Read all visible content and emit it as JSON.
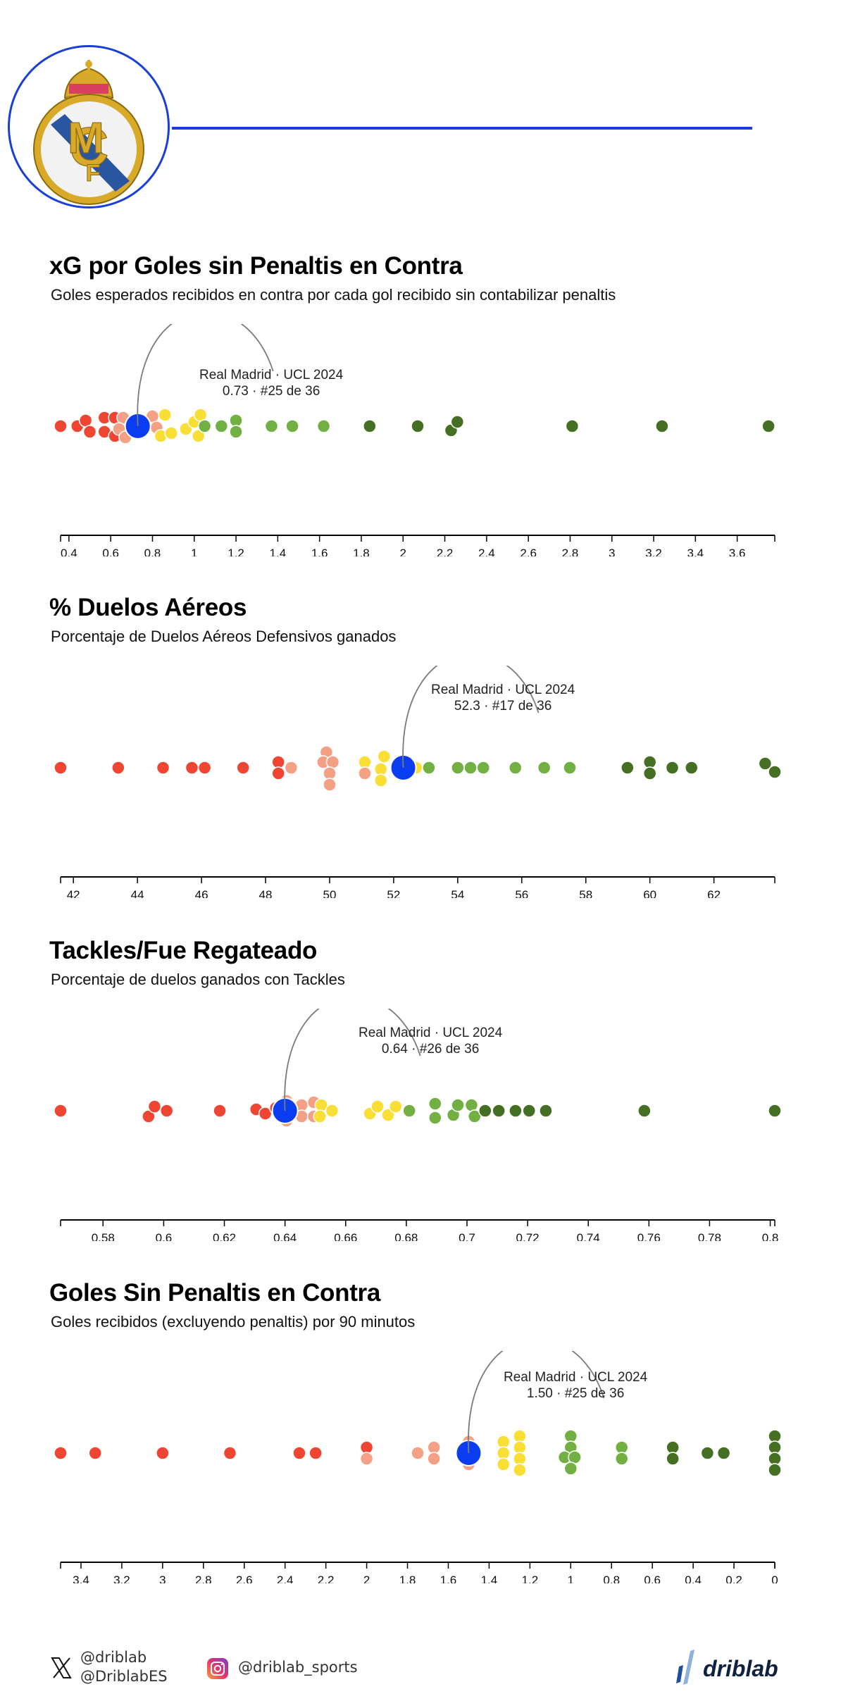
{
  "header": {
    "crest": "real-madrid-crest",
    "accent_color": "#1a3fd6"
  },
  "palette": {
    "red": "#ef4634",
    "salmon": "#f4a084",
    "yellow": "#f9de35",
    "light_green": "#72b043",
    "dark_green": "#456f22",
    "highlight": "#0a3cf0",
    "annotation_line": "#7a7a7a"
  },
  "sections": [
    {
      "title": "xG por Goles sin Penaltis en Contra",
      "subtitle": "Goles esperados recibidos en contra por cada gol recibido sin contabilizar penaltis",
      "annotation": {
        "line1": "Real Madrid · UCL 2024",
        "line2": "0.73 · #25 de 36"
      }
    },
    {
      "title": "% Duelos Aéreos",
      "subtitle": "Porcentaje de Duelos Aéreos Defensivos ganados",
      "annotation": {
        "line1": "Real Madrid · UCL 2024",
        "line2": "52.3 · #17 de 36"
      }
    },
    {
      "title": "Tackles/Fue Regateado",
      "subtitle": "Porcentaje de duelos ganados con Tackles",
      "annotation": {
        "line1": "Real Madrid · UCL 2024",
        "line2": "0.64 · #26 de 36"
      }
    },
    {
      "title": "Goles Sin Penaltis en Contra",
      "subtitle": "Goles recibidos (excluyendo penaltis) por 90 minutos",
      "annotation": {
        "line1": "Real Madrid · UCL 2024",
        "line2": "1.50 · #25 de 36"
      }
    }
  ],
  "footer": {
    "x_handles": [
      "@driblab",
      "@DriblabES"
    ],
    "instagram_handle": "@driblab_sports",
    "brand": "driblab"
  },
  "chart_data": [
    {
      "type": "scatter",
      "subtype": "beeswarm",
      "title": "xG por Goles sin Penaltis en Contra",
      "subtitle": "Goles esperados recibidos en contra por cada gol recibido sin contabilizar penaltis",
      "xlabel": "",
      "ylabel": "",
      "xlim": [
        0.36,
        3.78
      ],
      "xticks": [
        "0.4",
        "0.6",
        "0.8",
        "1",
        "1.2",
        "1.4",
        "1.6",
        "1.8",
        "2",
        "2.2",
        "2.4",
        "2.6",
        "2.8",
        "3",
        "3.2",
        "3.4",
        "3.6"
      ],
      "grid": false,
      "highlight": {
        "team": "Real Madrid",
        "competition": "UCL 2024",
        "value": 0.73,
        "rank": 25,
        "total": 36
      },
      "points": [
        {
          "x": 0.36,
          "dy": 0,
          "c": "red"
        },
        {
          "x": 0.44,
          "dy": 0,
          "c": "red"
        },
        {
          "x": 0.48,
          "dy": -8,
          "c": "red"
        },
        {
          "x": 0.5,
          "dy": 8,
          "c": "red"
        },
        {
          "x": 0.57,
          "dy": -12,
          "c": "red"
        },
        {
          "x": 0.57,
          "dy": 8,
          "c": "red"
        },
        {
          "x": 0.62,
          "dy": -12,
          "c": "red"
        },
        {
          "x": 0.62,
          "dy": 14,
          "c": "red"
        },
        {
          "x": 0.66,
          "dy": -12,
          "c": "salmon"
        },
        {
          "x": 0.64,
          "dy": 4,
          "c": "salmon"
        },
        {
          "x": 0.67,
          "dy": 16,
          "c": "salmon"
        },
        {
          "x": 0.8,
          "dy": -14,
          "c": "salmon"
        },
        {
          "x": 0.82,
          "dy": 2,
          "c": "salmon"
        },
        {
          "x": 0.86,
          "dy": -16,
          "c": "yellow"
        },
        {
          "x": 0.84,
          "dy": 14,
          "c": "yellow"
        },
        {
          "x": 0.89,
          "dy": 10,
          "c": "yellow"
        },
        {
          "x": 0.96,
          "dy": 4,
          "c": "yellow"
        },
        {
          "x": 1.0,
          "dy": -6,
          "c": "yellow"
        },
        {
          "x": 1.03,
          "dy": -16,
          "c": "yellow"
        },
        {
          "x": 1.02,
          "dy": 14,
          "c": "yellow"
        },
        {
          "x": 1.05,
          "dy": 0,
          "c": "light_green"
        },
        {
          "x": 1.13,
          "dy": 0,
          "c": "light_green"
        },
        {
          "x": 1.2,
          "dy": -8,
          "c": "light_green"
        },
        {
          "x": 1.2,
          "dy": 8,
          "c": "light_green"
        },
        {
          "x": 1.37,
          "dy": 0,
          "c": "light_green"
        },
        {
          "x": 1.47,
          "dy": 0,
          "c": "light_green"
        },
        {
          "x": 1.62,
          "dy": 0,
          "c": "light_green"
        },
        {
          "x": 1.84,
          "dy": 0,
          "c": "dark_green"
        },
        {
          "x": 2.07,
          "dy": 0,
          "c": "dark_green"
        },
        {
          "x": 2.23,
          "dy": 6,
          "c": "dark_green"
        },
        {
          "x": 2.26,
          "dy": -6,
          "c": "dark_green"
        },
        {
          "x": 2.81,
          "dy": 0,
          "c": "dark_green"
        },
        {
          "x": 3.24,
          "dy": 0,
          "c": "dark_green"
        },
        {
          "x": 3.75,
          "dy": 0,
          "c": "dark_green"
        }
      ]
    },
    {
      "type": "scatter",
      "subtype": "beeswarm",
      "title": "% Duelos Aéreos",
      "subtitle": "Porcentaje de Duelos Aéreos Defensivos ganados",
      "xlabel": "",
      "ylabel": "",
      "xlim": [
        41.6,
        63.9
      ],
      "xticks": [
        "42",
        "44",
        "46",
        "48",
        "50",
        "52",
        "54",
        "56",
        "58",
        "60",
        "62"
      ],
      "grid": false,
      "highlight": {
        "team": "Real Madrid",
        "competition": "UCL 2024",
        "value": 52.3,
        "rank": 17,
        "total": 36
      },
      "points": [
        {
          "x": 41.6,
          "dy": 0,
          "c": "red"
        },
        {
          "x": 43.4,
          "dy": 0,
          "c": "red"
        },
        {
          "x": 44.8,
          "dy": 0,
          "c": "red"
        },
        {
          "x": 45.7,
          "dy": 0,
          "c": "red"
        },
        {
          "x": 46.1,
          "dy": 0,
          "c": "red"
        },
        {
          "x": 47.3,
          "dy": 0,
          "c": "red"
        },
        {
          "x": 48.4,
          "dy": -8,
          "c": "red"
        },
        {
          "x": 48.4,
          "dy": 8,
          "c": "red"
        },
        {
          "x": 48.8,
          "dy": 0,
          "c": "salmon"
        },
        {
          "x": 49.9,
          "dy": -22,
          "c": "salmon"
        },
        {
          "x": 49.8,
          "dy": -8,
          "c": "salmon"
        },
        {
          "x": 50.1,
          "dy": -8,
          "c": "salmon"
        },
        {
          "x": 50.0,
          "dy": 8,
          "c": "salmon"
        },
        {
          "x": 50.0,
          "dy": 24,
          "c": "salmon"
        },
        {
          "x": 51.1,
          "dy": -8,
          "c": "yellow"
        },
        {
          "x": 51.1,
          "dy": 8,
          "c": "salmon"
        },
        {
          "x": 51.7,
          "dy": -16,
          "c": "yellow"
        },
        {
          "x": 51.6,
          "dy": 2,
          "c": "yellow"
        },
        {
          "x": 51.6,
          "dy": 18,
          "c": "yellow"
        },
        {
          "x": 52.7,
          "dy": 0,
          "c": "yellow"
        },
        {
          "x": 53.1,
          "dy": 0,
          "c": "light_green"
        },
        {
          "x": 54.0,
          "dy": 0,
          "c": "light_green"
        },
        {
          "x": 54.4,
          "dy": 0,
          "c": "light_green"
        },
        {
          "x": 54.8,
          "dy": 0,
          "c": "light_green"
        },
        {
          "x": 55.8,
          "dy": 0,
          "c": "light_green"
        },
        {
          "x": 56.7,
          "dy": 0,
          "c": "light_green"
        },
        {
          "x": 57.5,
          "dy": 0,
          "c": "light_green"
        },
        {
          "x": 59.3,
          "dy": 0,
          "c": "dark_green"
        },
        {
          "x": 60.0,
          "dy": -8,
          "c": "dark_green"
        },
        {
          "x": 60.0,
          "dy": 8,
          "c": "dark_green"
        },
        {
          "x": 60.7,
          "dy": 0,
          "c": "dark_green"
        },
        {
          "x": 61.3,
          "dy": 0,
          "c": "dark_green"
        },
        {
          "x": 63.6,
          "dy": -6,
          "c": "dark_green"
        },
        {
          "x": 63.9,
          "dy": 6,
          "c": "dark_green"
        }
      ]
    },
    {
      "type": "scatter",
      "subtype": "beeswarm",
      "title": "Tackles/Fue Regateado",
      "subtitle": "Porcentaje de duelos ganados con Tackles",
      "xlabel": "",
      "ylabel": "",
      "xlim": [
        0.566,
        0.8015
      ],
      "xticks": [
        "0.58",
        "0.6",
        "0.62",
        "0.64",
        "0.66",
        "0.68",
        "0.7",
        "0.72",
        "0.74",
        "0.76",
        "0.78",
        "0.8"
      ],
      "grid": false,
      "highlight": {
        "team": "Real Madrid",
        "competition": "UCL 2024",
        "value": 0.64,
        "rank": 26,
        "total": 36
      },
      "points": [
        {
          "x": 0.566,
          "dy": 0,
          "c": "red"
        },
        {
          "x": 0.595,
          "dy": 8,
          "c": "red"
        },
        {
          "x": 0.597,
          "dy": -6,
          "c": "red"
        },
        {
          "x": 0.601,
          "dy": 0,
          "c": "red"
        },
        {
          "x": 0.6185,
          "dy": 0,
          "c": "red"
        },
        {
          "x": 0.6305,
          "dy": -2,
          "c": "red"
        },
        {
          "x": 0.6335,
          "dy": 4,
          "c": "red"
        },
        {
          "x": 0.637,
          "dy": -4,
          "c": "red"
        },
        {
          "x": 0.6405,
          "dy": -14,
          "c": "salmon"
        },
        {
          "x": 0.6405,
          "dy": 14,
          "c": "salmon"
        },
        {
          "x": 0.6455,
          "dy": -8,
          "c": "salmon"
        },
        {
          "x": 0.6455,
          "dy": 8,
          "c": "salmon"
        },
        {
          "x": 0.6495,
          "dy": -12,
          "c": "salmon"
        },
        {
          "x": 0.6495,
          "dy": 8,
          "c": "salmon"
        },
        {
          "x": 0.652,
          "dy": -8,
          "c": "yellow"
        },
        {
          "x": 0.6515,
          "dy": 8,
          "c": "yellow"
        },
        {
          "x": 0.6555,
          "dy": 0,
          "c": "yellow"
        },
        {
          "x": 0.668,
          "dy": 4,
          "c": "yellow"
        },
        {
          "x": 0.6705,
          "dy": -6,
          "c": "yellow"
        },
        {
          "x": 0.674,
          "dy": 6,
          "c": "yellow"
        },
        {
          "x": 0.6765,
          "dy": -6,
          "c": "yellow"
        },
        {
          "x": 0.681,
          "dy": 0,
          "c": "light_green"
        },
        {
          "x": 0.6895,
          "dy": -10,
          "c": "light_green"
        },
        {
          "x": 0.6895,
          "dy": 10,
          "c": "light_green"
        },
        {
          "x": 0.6955,
          "dy": 6,
          "c": "light_green"
        },
        {
          "x": 0.697,
          "dy": -8,
          "c": "light_green"
        },
        {
          "x": 0.7015,
          "dy": -8,
          "c": "light_green"
        },
        {
          "x": 0.7025,
          "dy": 8,
          "c": "light_green"
        },
        {
          "x": 0.706,
          "dy": 0,
          "c": "dark_green"
        },
        {
          "x": 0.7105,
          "dy": 0,
          "c": "dark_green"
        },
        {
          "x": 0.716,
          "dy": 0,
          "c": "dark_green"
        },
        {
          "x": 0.7205,
          "dy": 0,
          "c": "dark_green"
        },
        {
          "x": 0.726,
          "dy": 0,
          "c": "dark_green"
        },
        {
          "x": 0.7585,
          "dy": 0,
          "c": "dark_green"
        },
        {
          "x": 0.8015,
          "dy": 0,
          "c": "dark_green"
        }
      ]
    },
    {
      "type": "scatter",
      "subtype": "beeswarm",
      "title": "Goles Sin Penaltis en Contra",
      "subtitle": "Goles recibidos (excluyendo penaltis) por 90 minutos",
      "xlabel": "",
      "ylabel": "",
      "xlim": [
        3.5,
        0
      ],
      "x_reversed": true,
      "xticks": [
        "3.4",
        "3.2",
        "3",
        "2.8",
        "2.6",
        "2.4",
        "2.2",
        "2",
        "1.8",
        "1.6",
        "1.4",
        "1.2",
        "1",
        "0.8",
        "0.6",
        "0.4",
        "0.2",
        "0"
      ],
      "grid": false,
      "highlight": {
        "team": "Real Madrid",
        "competition": "UCL 2024",
        "value": 1.5,
        "rank": 25,
        "total": 36
      },
      "points": [
        {
          "x": 3.5,
          "dy": 0,
          "c": "red"
        },
        {
          "x": 3.33,
          "dy": 0,
          "c": "red"
        },
        {
          "x": 3.0,
          "dy": 0,
          "c": "red"
        },
        {
          "x": 2.67,
          "dy": 0,
          "c": "red"
        },
        {
          "x": 2.33,
          "dy": 0,
          "c": "red"
        },
        {
          "x": 2.25,
          "dy": 0,
          "c": "red"
        },
        {
          "x": 2.0,
          "dy": -8,
          "c": "red"
        },
        {
          "x": 2.0,
          "dy": 8,
          "c": "salmon"
        },
        {
          "x": 1.75,
          "dy": 0,
          "c": "salmon"
        },
        {
          "x": 1.67,
          "dy": -8,
          "c": "salmon"
        },
        {
          "x": 1.67,
          "dy": 8,
          "c": "salmon"
        },
        {
          "x": 1.5,
          "dy": -16,
          "c": "salmon"
        },
        {
          "x": 1.5,
          "dy": 16,
          "c": "salmon"
        },
        {
          "x": 1.33,
          "dy": -16,
          "c": "yellow"
        },
        {
          "x": 1.33,
          "dy": 0,
          "c": "yellow"
        },
        {
          "x": 1.33,
          "dy": 16,
          "c": "yellow"
        },
        {
          "x": 1.25,
          "dy": -24,
          "c": "yellow"
        },
        {
          "x": 1.25,
          "dy": -8,
          "c": "yellow"
        },
        {
          "x": 1.25,
          "dy": 8,
          "c": "yellow"
        },
        {
          "x": 1.25,
          "dy": 24,
          "c": "yellow"
        },
        {
          "x": 1.0,
          "dy": -24,
          "c": "light_green"
        },
        {
          "x": 1.0,
          "dy": -8,
          "c": "light_green"
        },
        {
          "x": 1.03,
          "dy": 6,
          "c": "light_green"
        },
        {
          "x": 0.98,
          "dy": 6,
          "c": "light_green"
        },
        {
          "x": 1.0,
          "dy": 22,
          "c": "light_green"
        },
        {
          "x": 0.75,
          "dy": -8,
          "c": "light_green"
        },
        {
          "x": 0.75,
          "dy": 8,
          "c": "light_green"
        },
        {
          "x": 0.5,
          "dy": -8,
          "c": "dark_green"
        },
        {
          "x": 0.5,
          "dy": 8,
          "c": "dark_green"
        },
        {
          "x": 0.33,
          "dy": 0,
          "c": "dark_green"
        },
        {
          "x": 0.25,
          "dy": 0,
          "c": "dark_green"
        },
        {
          "x": 0.0,
          "dy": -24,
          "c": "dark_green"
        },
        {
          "x": 0.0,
          "dy": -8,
          "c": "dark_green"
        },
        {
          "x": 0.0,
          "dy": 8,
          "c": "dark_green"
        },
        {
          "x": 0.0,
          "dy": 24,
          "c": "dark_green"
        }
      ]
    }
  ]
}
